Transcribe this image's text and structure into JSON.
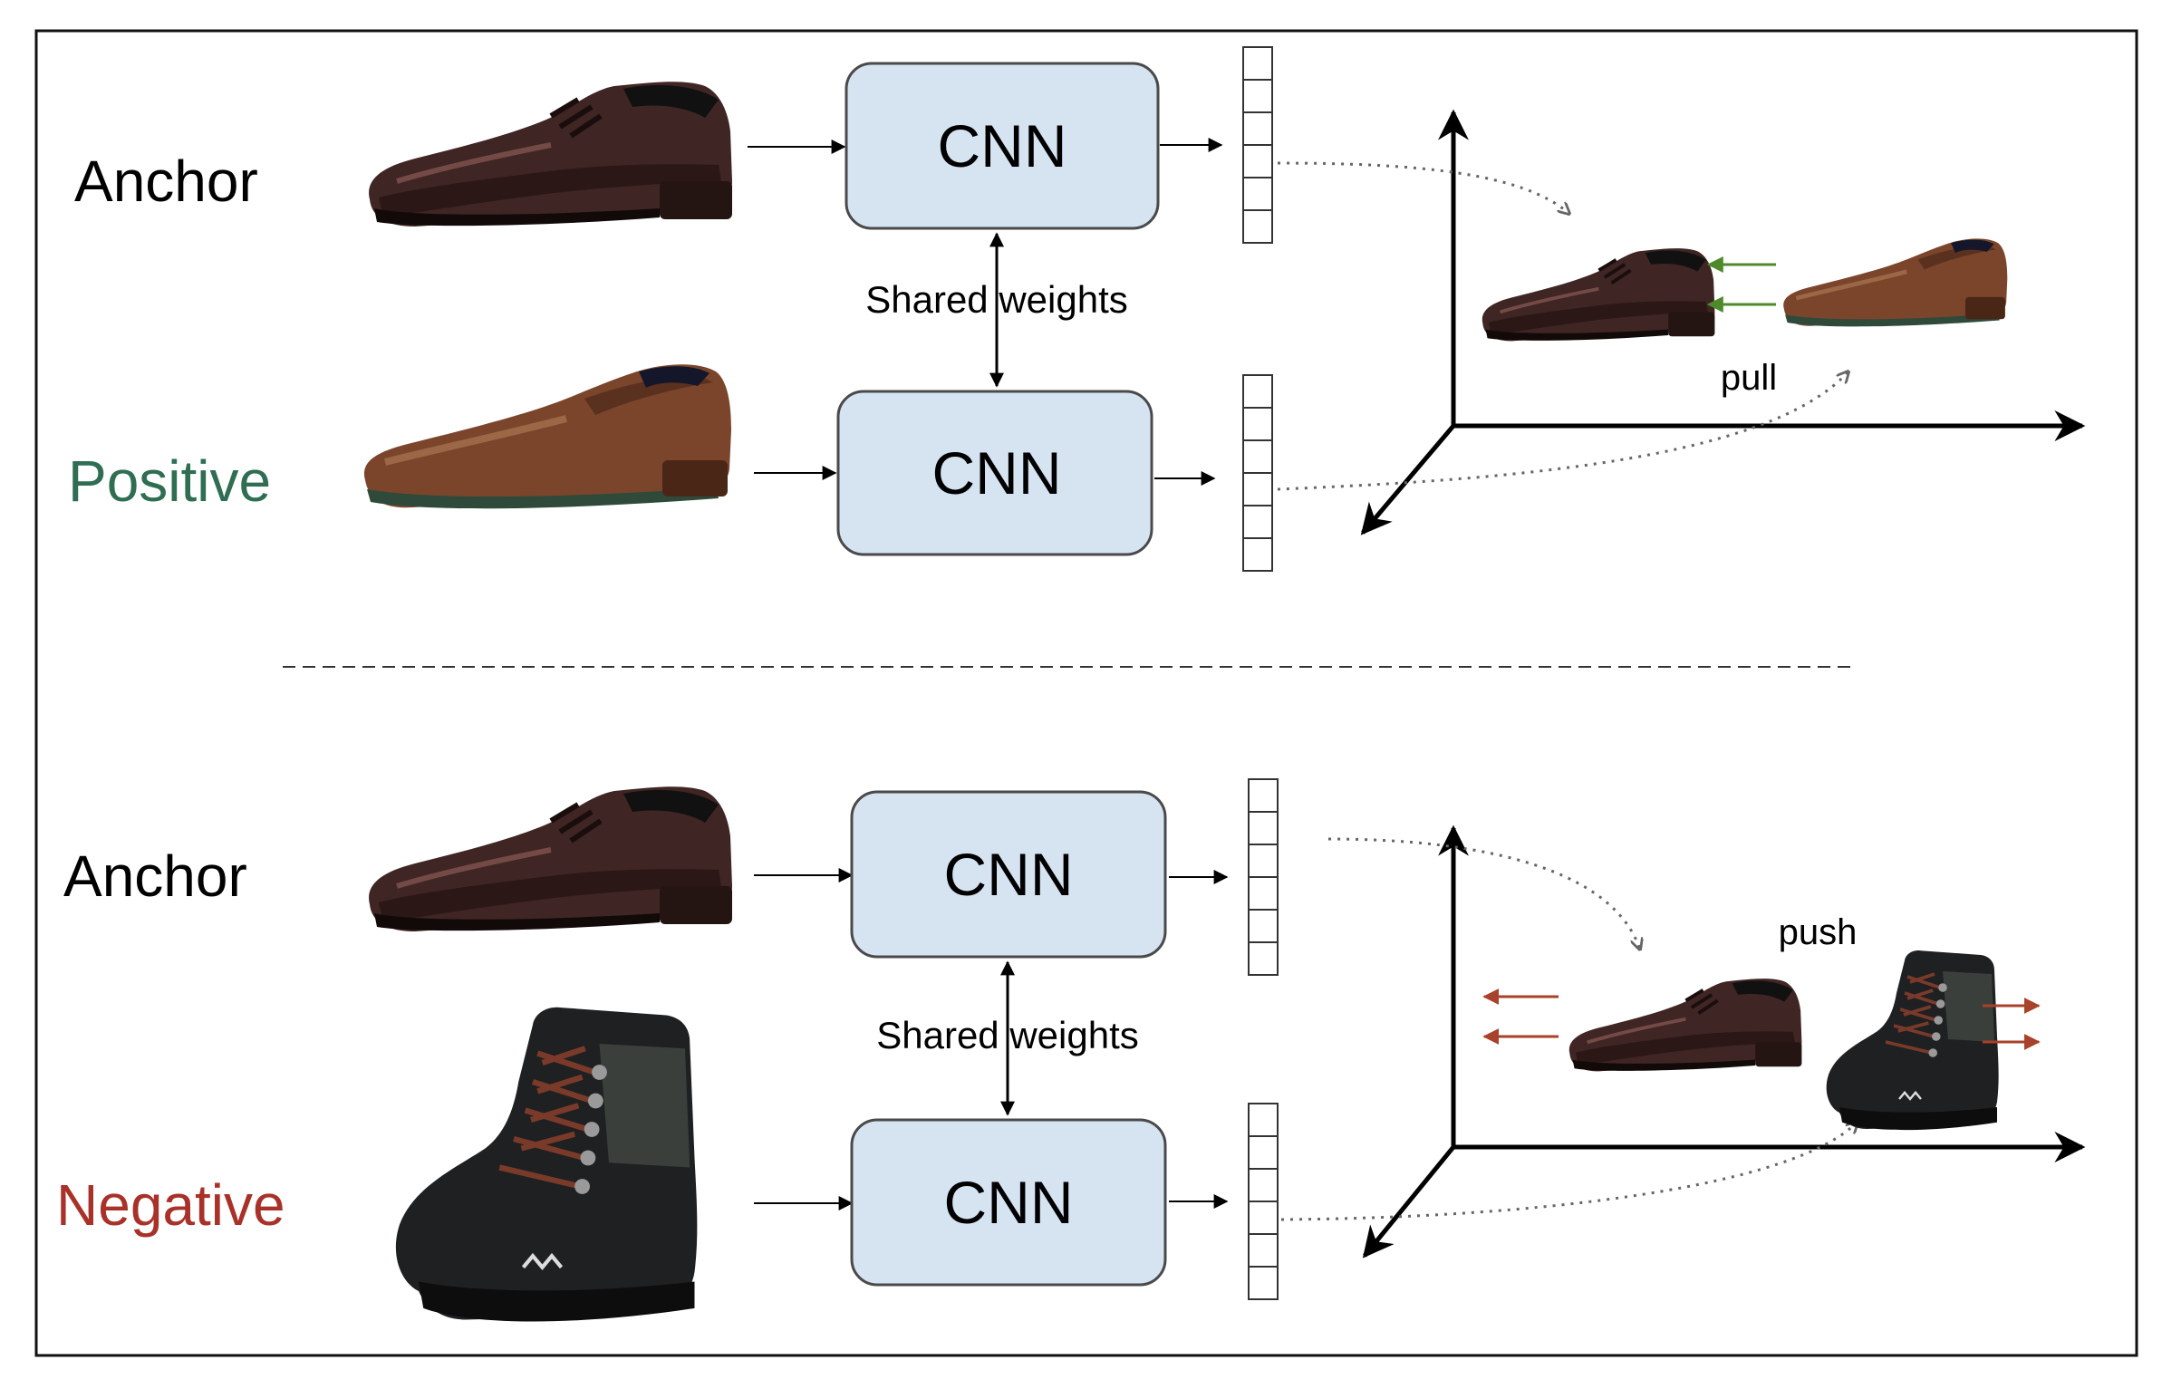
{
  "colors": {
    "cnn_fill": "#d6e4f2",
    "cnn_stroke": "#4a4a4a",
    "positive_label": "#2f6e52",
    "negative_label": "#a8322a",
    "pull_arrow": "#4f8a2a",
    "push_arrow": "#a8422a",
    "brown_shoe": "#3f2523",
    "tan_shoe": "#7b452c",
    "boot": "#1f2022"
  },
  "icons": [
    "dress-shoe-icon",
    "loafer-icon",
    "hiking-boot-icon"
  ],
  "top_panel": {
    "anchor_label": "Anchor",
    "positive_label": "Positive",
    "cnn_top": "CNN",
    "cnn_bottom": "CNN",
    "shared_label": "Shared weights",
    "force_label": "pull"
  },
  "bottom_panel": {
    "anchor_label": "Anchor",
    "negative_label": "Negative",
    "cnn_top": "CNN",
    "cnn_bottom": "CNN",
    "shared_label": "Shared weights",
    "force_label": "push"
  }
}
